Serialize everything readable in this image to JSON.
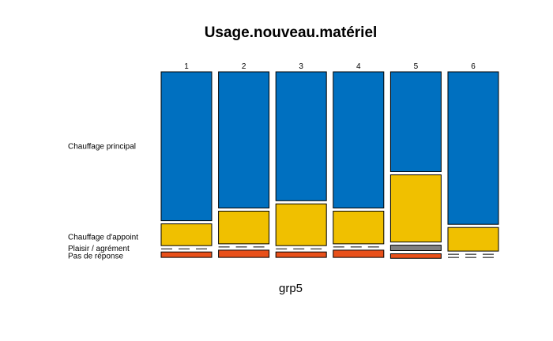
{
  "chart_data": {
    "type": "mosaic",
    "title": "Usage.nouveau.matériel",
    "xlabel": "grp5",
    "columns": [
      "1",
      "2",
      "3",
      "4",
      "5",
      "6"
    ],
    "categories": [
      "Chauffage principal",
      "Chauffage d'appoint",
      "Plaisir / agrément",
      "Pas de réponse"
    ],
    "colors": {
      "Chauffage principal": "#0070C0",
      "Chauffage d'appoint": "#F0C000",
      "Plaisir / agrément": "#808080",
      "Pas de réponse": "#E8501A"
    },
    "proportions": [
      {
        "column": "1",
        "values": [
          0.82,
          0.12,
          0.0,
          0.03
        ]
      },
      {
        "column": "2",
        "values": [
          0.75,
          0.18,
          0.0,
          0.04
        ]
      },
      {
        "column": "3",
        "values": [
          0.71,
          0.23,
          0.0,
          0.03
        ]
      },
      {
        "column": "4",
        "values": [
          0.75,
          0.18,
          0.0,
          0.04
        ]
      },
      {
        "column": "5",
        "values": [
          0.55,
          0.37,
          0.03,
          0.025
        ]
      },
      {
        "column": "6",
        "values": [
          0.84,
          0.13,
          0.0,
          0.0
        ]
      }
    ]
  }
}
